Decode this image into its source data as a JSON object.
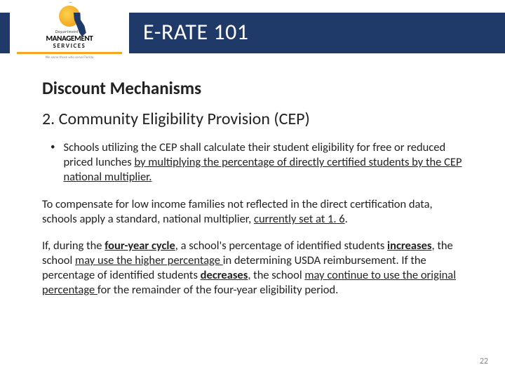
{
  "header": {
    "title": "E-RATE 101",
    "logo": {
      "dept": "Department of",
      "line1": "MANAGEMENT",
      "line2": "SERVICES",
      "tagline": "We serve those who serve Florida"
    }
  },
  "content": {
    "section": "Discount Mechanisms",
    "subsection": "2. Community Eligibility Provision (CEP)",
    "bullet": {
      "pre": "Schools utilizing the CEP shall calculate their student eligibility for free or reduced priced lunches ",
      "u1": "by multiplying the percentage of directly certified students by the CEP national multiplier."
    },
    "p1": {
      "t1": "To compensate for low income families not reflected in the direct certification data, schools apply a standard, national multiplier, ",
      "u1": "currently set at 1. 6",
      "t2": "."
    },
    "p2": {
      "t1": "If, during the ",
      "b1": "four-year cycle",
      "t2": ", a school's percentage of identified students ",
      "b2": "increases",
      "t3": ", the school ",
      "u1": "may use the higher percentage ",
      "t4": "in determining USDA reimbursement. If the percentage of identified students ",
      "b3": "decreases",
      "t5": ", the school ",
      "u2": "may continue to use the original percentage ",
      "t6": "for the remainder of the four-year eligibility period."
    }
  },
  "page": "22"
}
